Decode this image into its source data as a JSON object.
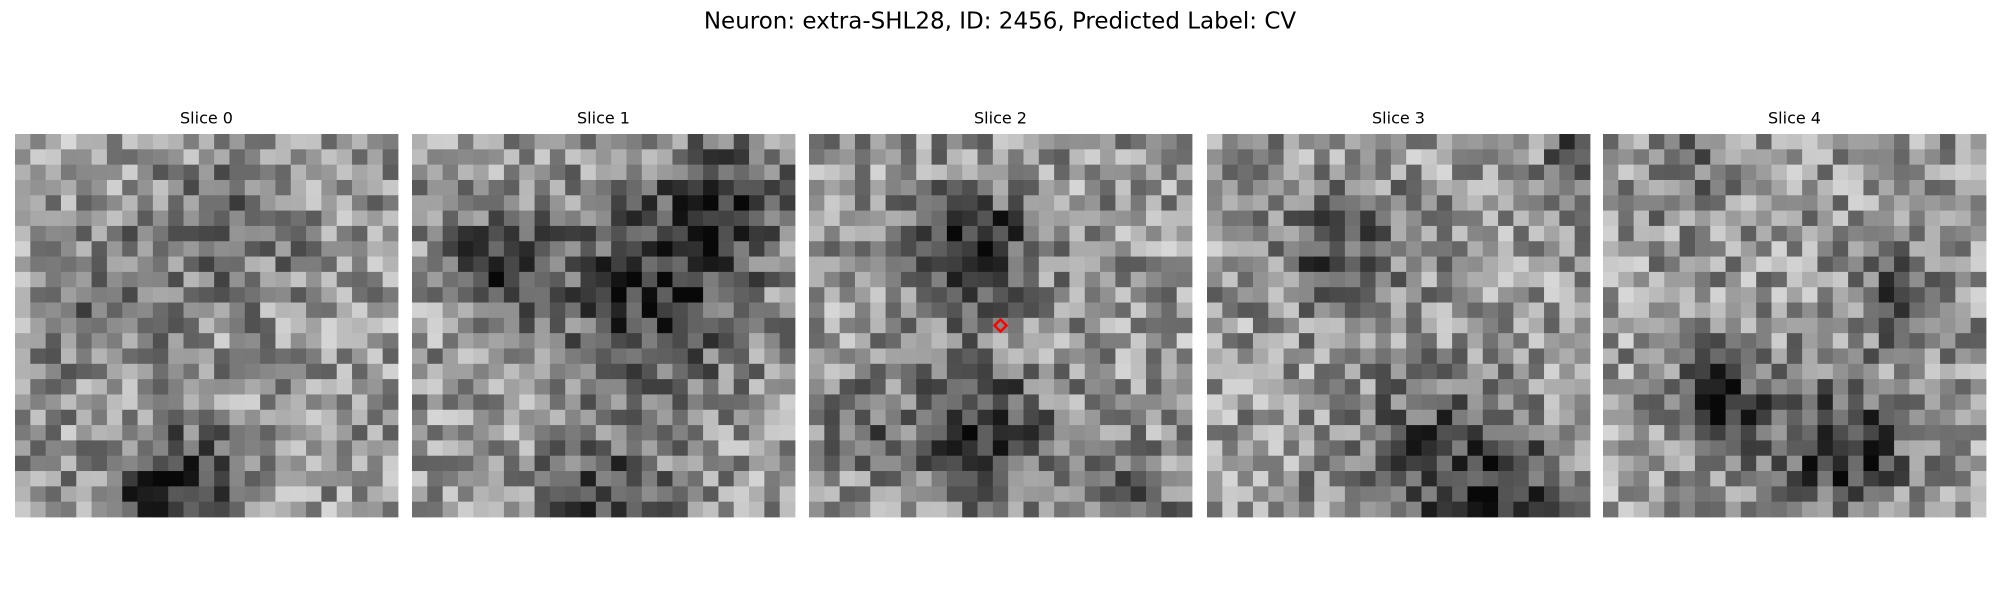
{
  "title": "Neuron: extra-SHL28, ID: 2456, Predicted Label: CV",
  "panels": [
    {
      "title": "Slice 0"
    },
    {
      "title": "Slice 1"
    },
    {
      "title": "Slice 2"
    },
    {
      "title": "Slice 3"
    },
    {
      "title": "Slice 4"
    }
  ]
}
